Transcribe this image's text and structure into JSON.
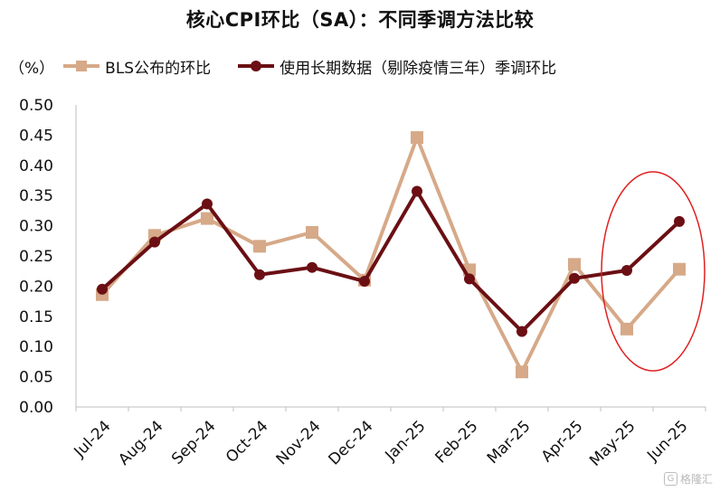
{
  "title": "核心CPI环比（SA）：不同季调方法比较",
  "watermark": "格隆汇",
  "chart_data": {
    "type": "line",
    "unit": "（%）",
    "categories": [
      "Jul-24",
      "Aug-24",
      "Sep-24",
      "Oct-24",
      "Nov-24",
      "Dec-24",
      "Jan-25",
      "Feb-25",
      "Mar-25",
      "Apr-25",
      "May-25",
      "Jun-25"
    ],
    "series": [
      {
        "name": "BLS公布的环比",
        "color": "#d6a988",
        "marker": "square",
        "values": [
          0.186,
          0.284,
          0.312,
          0.266,
          0.289,
          0.21,
          0.446,
          0.227,
          0.058,
          0.236,
          0.129,
          0.228
        ]
      },
      {
        "name": "使用长期数据（剔除疫情三年）季调环比",
        "color": "#6b0f14",
        "marker": "circle",
        "values": [
          0.195,
          0.273,
          0.336,
          0.219,
          0.231,
          0.208,
          0.357,
          0.212,
          0.125,
          0.213,
          0.226,
          0.307
        ]
      }
    ],
    "y_ticks": [
      "0.00",
      "0.05",
      "0.10",
      "0.15",
      "0.20",
      "0.25",
      "0.30",
      "0.35",
      "0.40",
      "0.45",
      "0.50"
    ],
    "ylim": [
      0,
      0.5
    ],
    "grid": false,
    "legend_position": "top-left",
    "highlight": {
      "from": "May-25",
      "to": "Jun-25",
      "color": "#e02020",
      "shape": "ellipse"
    }
  }
}
